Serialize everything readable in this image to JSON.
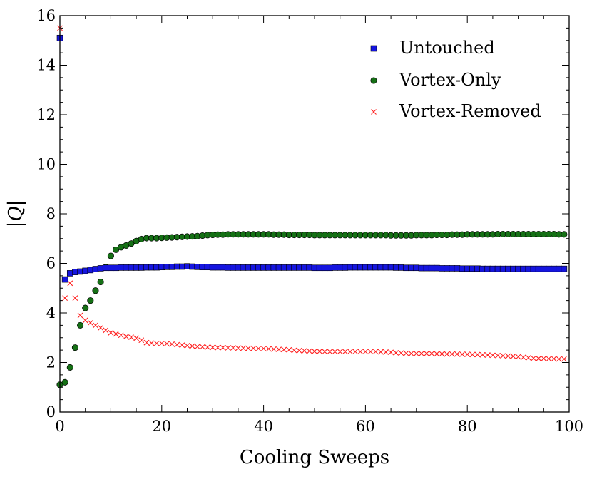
{
  "chart_data": {
    "type": "scatter",
    "title": "",
    "xlabel": "Cooling Sweeps",
    "ylabel": "|Q|",
    "xlim": [
      0,
      100
    ],
    "ylim": [
      0,
      16
    ],
    "xticks": [
      0,
      20,
      40,
      60,
      80,
      100
    ],
    "yticks": [
      0,
      2,
      4,
      6,
      8,
      10,
      12,
      14,
      16
    ],
    "grid": false,
    "legend_position": "top-right",
    "series": [
      {
        "name": "Untouched",
        "marker": "square",
        "color": "#1515e0",
        "x": [
          0,
          1,
          2,
          3,
          4,
          5,
          6,
          7,
          8,
          9,
          10,
          11,
          12,
          13,
          14,
          15,
          16,
          17,
          18,
          19,
          20,
          21,
          22,
          23,
          24,
          25,
          26,
          27,
          28,
          29,
          30,
          31,
          32,
          33,
          34,
          35,
          36,
          37,
          38,
          39,
          40,
          41,
          42,
          43,
          44,
          45,
          46,
          47,
          48,
          49,
          50,
          51,
          52,
          53,
          54,
          55,
          56,
          57,
          58,
          59,
          60,
          61,
          62,
          63,
          64,
          65,
          66,
          67,
          68,
          69,
          70,
          71,
          72,
          73,
          74,
          75,
          76,
          77,
          78,
          79,
          80,
          81,
          82,
          83,
          84,
          85,
          86,
          87,
          88,
          89,
          90,
          91,
          92,
          93,
          94,
          95,
          96,
          97,
          98,
          99
        ],
        "values": [
          15.1,
          5.35,
          5.6,
          5.65,
          5.67,
          5.7,
          5.73,
          5.77,
          5.8,
          5.82,
          5.82,
          5.82,
          5.83,
          5.83,
          5.83,
          5.83,
          5.83,
          5.84,
          5.84,
          5.84,
          5.85,
          5.86,
          5.86,
          5.87,
          5.87,
          5.88,
          5.87,
          5.86,
          5.85,
          5.85,
          5.84,
          5.84,
          5.84,
          5.83,
          5.83,
          5.83,
          5.83,
          5.83,
          5.83,
          5.83,
          5.83,
          5.83,
          5.83,
          5.83,
          5.83,
          5.83,
          5.83,
          5.83,
          5.83,
          5.83,
          5.82,
          5.82,
          5.82,
          5.82,
          5.83,
          5.83,
          5.83,
          5.84,
          5.84,
          5.84,
          5.84,
          5.84,
          5.84,
          5.84,
          5.84,
          5.84,
          5.83,
          5.83,
          5.82,
          5.82,
          5.82,
          5.81,
          5.81,
          5.81,
          5.81,
          5.8,
          5.8,
          5.8,
          5.8,
          5.79,
          5.79,
          5.79,
          5.79,
          5.78,
          5.78,
          5.78,
          5.78,
          5.78,
          5.78,
          5.78,
          5.78,
          5.78,
          5.78,
          5.78,
          5.78,
          5.78,
          5.78,
          5.78,
          5.78,
          5.78
        ]
      },
      {
        "name": "Vortex-Only",
        "marker": "circle",
        "color": "#157015",
        "x": [
          0,
          1,
          2,
          3,
          4,
          5,
          6,
          7,
          8,
          9,
          10,
          11,
          12,
          13,
          14,
          15,
          16,
          17,
          18,
          19,
          20,
          21,
          22,
          23,
          24,
          25,
          26,
          27,
          28,
          29,
          30,
          31,
          32,
          33,
          34,
          35,
          36,
          37,
          38,
          39,
          40,
          41,
          42,
          43,
          44,
          45,
          46,
          47,
          48,
          49,
          50,
          51,
          52,
          53,
          54,
          55,
          56,
          57,
          58,
          59,
          60,
          61,
          62,
          63,
          64,
          65,
          66,
          67,
          68,
          69,
          70,
          71,
          72,
          73,
          74,
          75,
          76,
          77,
          78,
          79,
          80,
          81,
          82,
          83,
          84,
          85,
          86,
          87,
          88,
          89,
          90,
          91,
          92,
          93,
          94,
          95,
          96,
          97,
          98,
          99
        ],
        "values": [
          1.1,
          1.2,
          1.8,
          2.6,
          3.5,
          4.2,
          4.5,
          4.9,
          5.25,
          5.85,
          6.3,
          6.55,
          6.65,
          6.72,
          6.8,
          6.9,
          6.98,
          7.02,
          7.02,
          7.02,
          7.03,
          7.04,
          7.05,
          7.06,
          7.07,
          7.08,
          7.09,
          7.1,
          7.12,
          7.14,
          7.15,
          7.16,
          7.16,
          7.17,
          7.17,
          7.17,
          7.17,
          7.17,
          7.17,
          7.17,
          7.17,
          7.17,
          7.16,
          7.16,
          7.16,
          7.15,
          7.15,
          7.15,
          7.15,
          7.15,
          7.14,
          7.14,
          7.14,
          7.14,
          7.14,
          7.14,
          7.14,
          7.14,
          7.14,
          7.14,
          7.14,
          7.14,
          7.14,
          7.14,
          7.14,
          7.13,
          7.13,
          7.13,
          7.13,
          7.13,
          7.14,
          7.14,
          7.14,
          7.14,
          7.15,
          7.15,
          7.15,
          7.16,
          7.16,
          7.16,
          7.17,
          7.17,
          7.17,
          7.17,
          7.17,
          7.17,
          7.18,
          7.18,
          7.18,
          7.18,
          7.18,
          7.18,
          7.18,
          7.18,
          7.18,
          7.18,
          7.18,
          7.18,
          7.17,
          7.17
        ]
      },
      {
        "name": "Vortex-Removed",
        "marker": "x",
        "color": "#ff2020",
        "x": [
          0,
          1,
          2,
          3,
          4,
          5,
          6,
          7,
          8,
          9,
          10,
          11,
          12,
          13,
          14,
          15,
          16,
          17,
          18,
          19,
          20,
          21,
          22,
          23,
          24,
          25,
          26,
          27,
          28,
          29,
          30,
          31,
          32,
          33,
          34,
          35,
          36,
          37,
          38,
          39,
          40,
          41,
          42,
          43,
          44,
          45,
          46,
          47,
          48,
          49,
          50,
          51,
          52,
          53,
          54,
          55,
          56,
          57,
          58,
          59,
          60,
          61,
          62,
          63,
          64,
          65,
          66,
          67,
          68,
          69,
          70,
          71,
          72,
          73,
          74,
          75,
          76,
          77,
          78,
          79,
          80,
          81,
          82,
          83,
          84,
          85,
          86,
          87,
          88,
          89,
          90,
          91,
          92,
          93,
          94,
          95,
          96,
          97,
          98,
          99
        ],
        "values": [
          15.5,
          4.6,
          5.2,
          4.6,
          3.9,
          3.7,
          3.6,
          3.5,
          3.4,
          3.3,
          3.2,
          3.15,
          3.1,
          3.05,
          3.02,
          2.98,
          2.9,
          2.8,
          2.78,
          2.77,
          2.77,
          2.76,
          2.74,
          2.72,
          2.7,
          2.68,
          2.66,
          2.64,
          2.63,
          2.62,
          2.61,
          2.6,
          2.6,
          2.59,
          2.59,
          2.58,
          2.58,
          2.57,
          2.57,
          2.56,
          2.56,
          2.55,
          2.54,
          2.53,
          2.52,
          2.51,
          2.49,
          2.48,
          2.47,
          2.46,
          2.45,
          2.45,
          2.44,
          2.44,
          2.44,
          2.44,
          2.44,
          2.44,
          2.44,
          2.44,
          2.44,
          2.44,
          2.44,
          2.43,
          2.42,
          2.41,
          2.39,
          2.38,
          2.37,
          2.36,
          2.36,
          2.36,
          2.36,
          2.36,
          2.35,
          2.35,
          2.34,
          2.34,
          2.34,
          2.33,
          2.33,
          2.32,
          2.32,
          2.31,
          2.3,
          2.29,
          2.28,
          2.27,
          2.26,
          2.25,
          2.23,
          2.21,
          2.19,
          2.17,
          2.16,
          2.16,
          2.15,
          2.15,
          2.14,
          2.14
        ]
      }
    ]
  }
}
